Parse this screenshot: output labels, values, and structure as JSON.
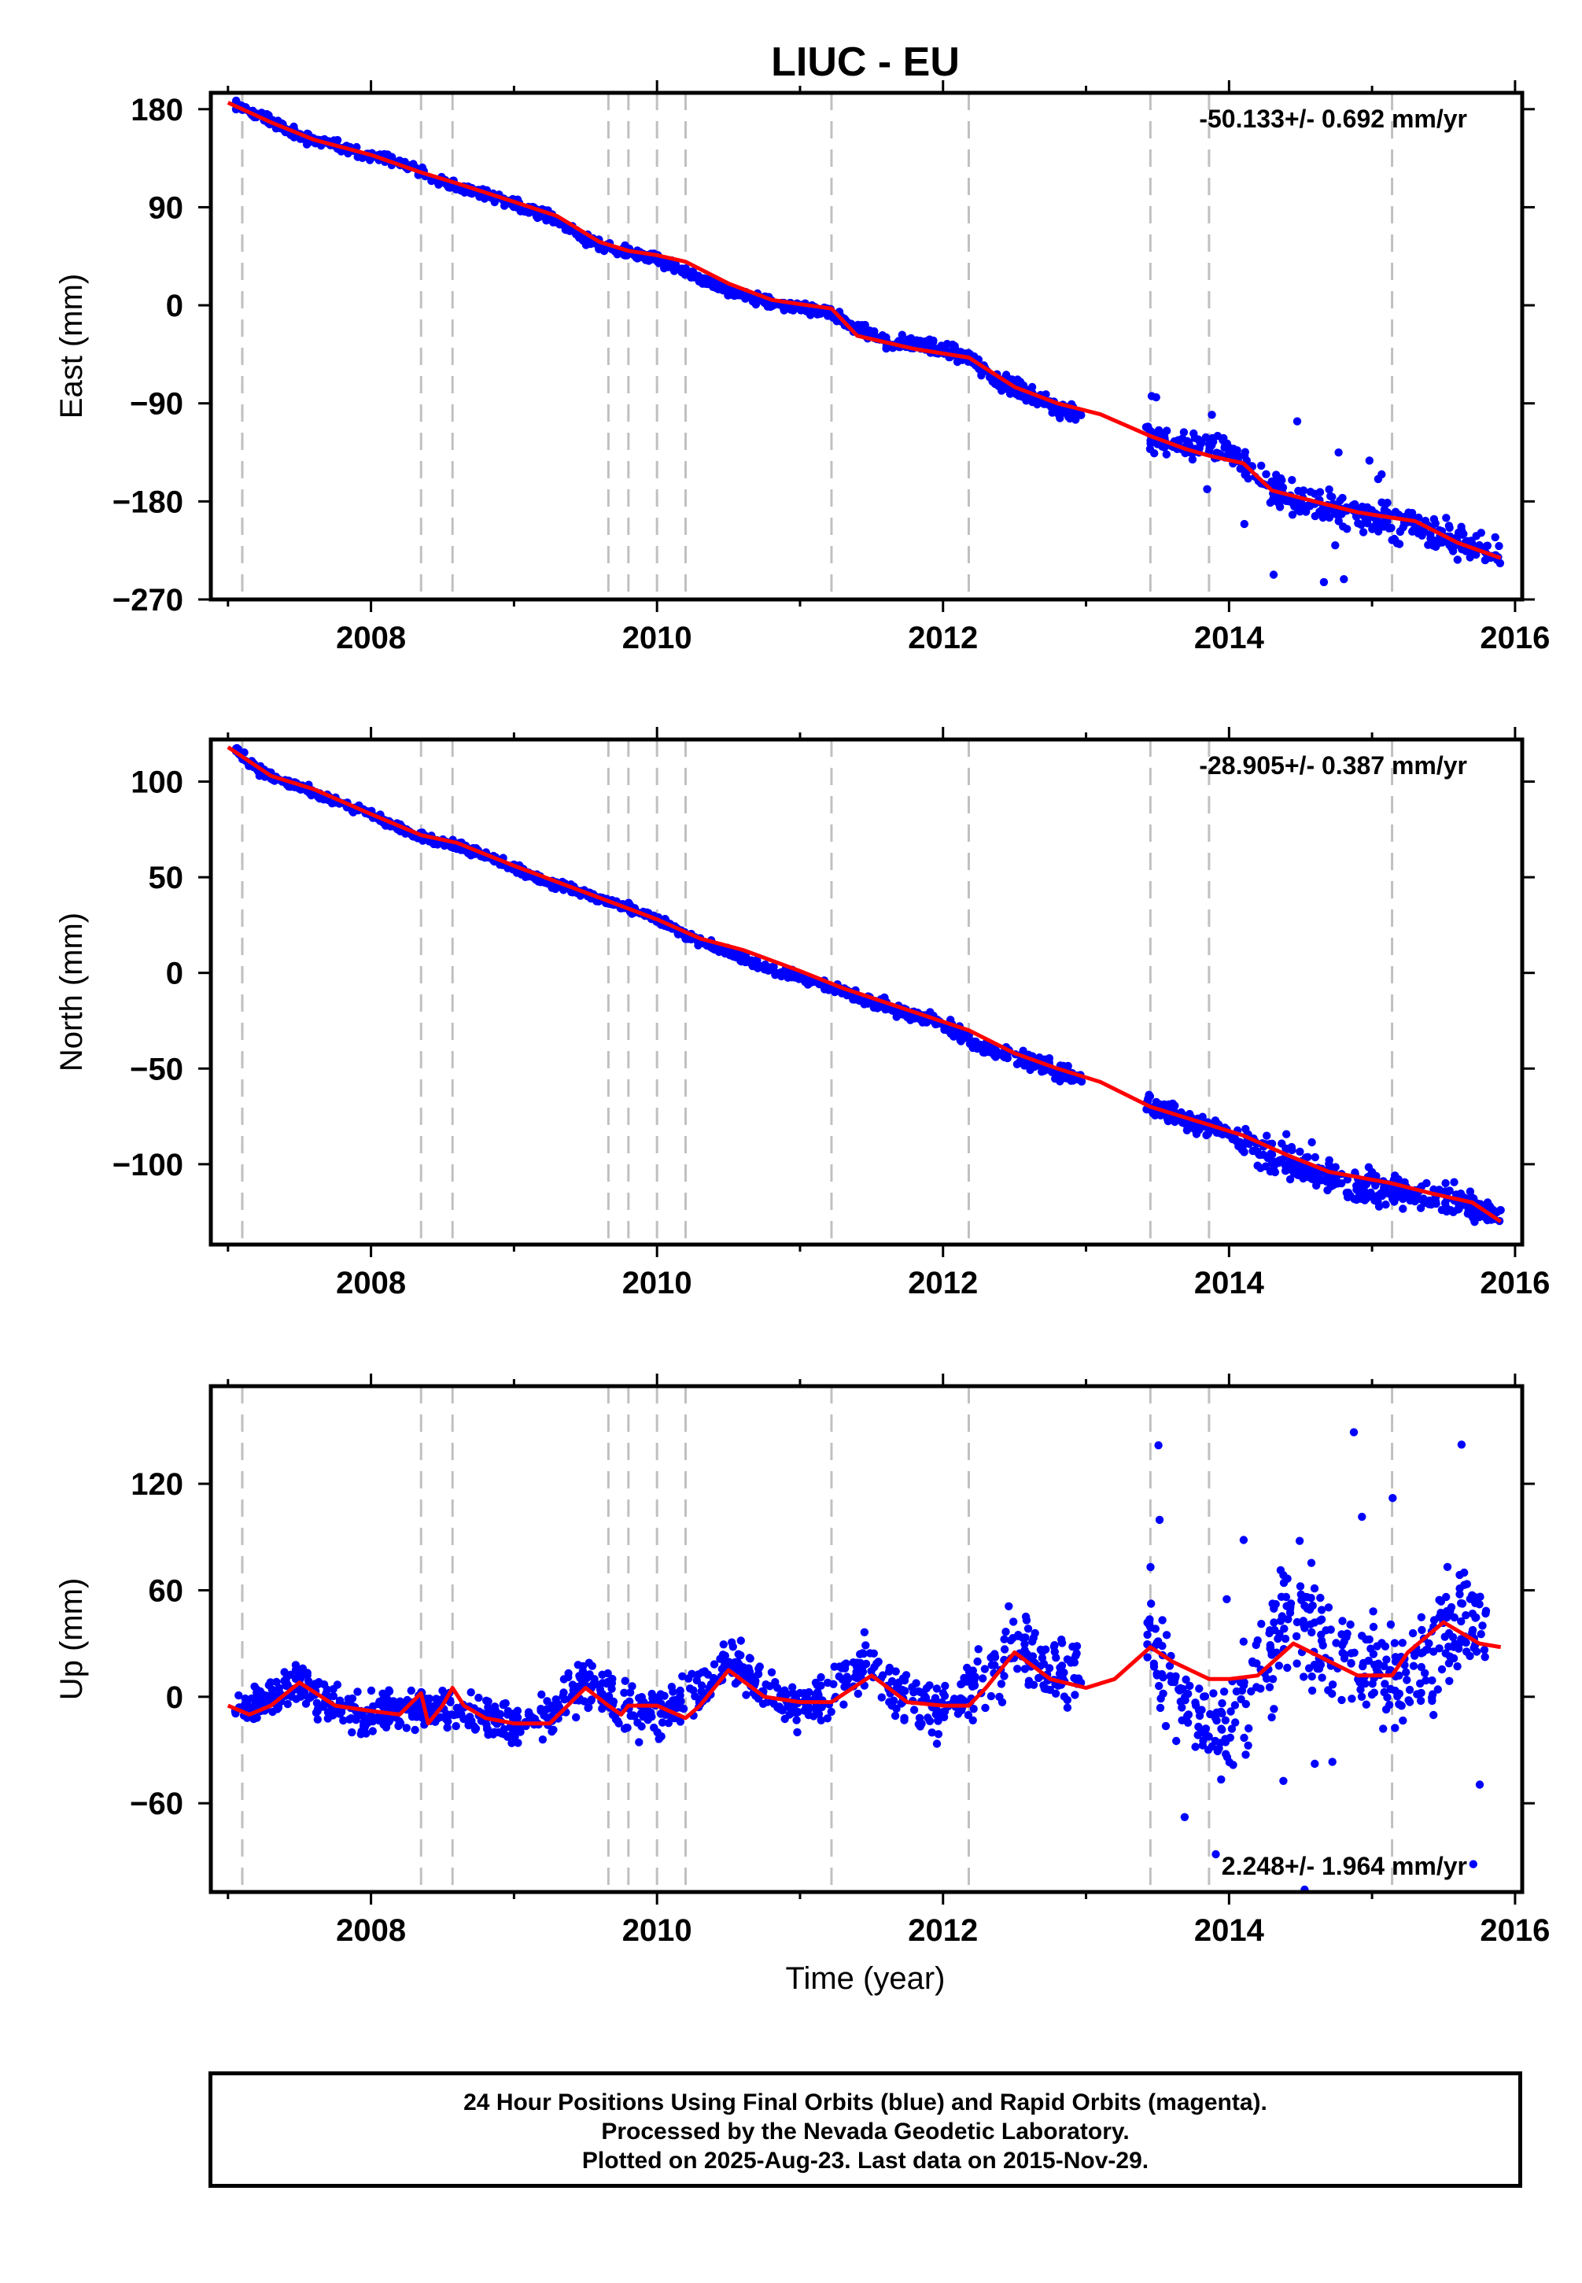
{
  "title": "LIUC - EU",
  "xlabel": "Time (year)",
  "x_ticks": [
    "2008",
    "2010",
    "2012",
    "2014",
    "2016"
  ],
  "footer": {
    "line1": "24 Hour Positions Using Final Orbits (blue) and Rapid Orbits (magenta).",
    "line2": "Processed by the Nevada Geodetic Laboratory.",
    "line3": "Plotted on 2025-Aug-23. Last data on 2015-Nov-29."
  },
  "colors": {
    "data": "#0000ff",
    "model": "#ff0000",
    "events": "#c0c0c0",
    "axes": "#000000"
  },
  "chart_data": [
    {
      "type": "scatter",
      "ylabel": "East (mm)",
      "rate_label": "-50.133+/- 0.692 mm/yr",
      "xlim": [
        2006.88,
        2016.05
      ],
      "ylim": [
        -270,
        195
      ],
      "y_ticks": [
        180,
        90,
        0,
        -90,
        -180,
        -270
      ],
      "y_tick_labels": [
        "180",
        "90",
        "0",
        "−90",
        "−180",
        "−270"
      ],
      "event_lines": [
        2007.1,
        2008.35,
        2008.57,
        2009.66,
        2009.8,
        2010.0,
        2010.2,
        2011.22,
        2012.18,
        2013.45,
        2013.86,
        2015.14
      ],
      "series": [
        {
          "kind": "scatter",
          "x": [
            2007.05,
            2007.25,
            2007.5,
            2007.75,
            2008.0,
            2008.25,
            2008.5,
            2008.75,
            2009.0,
            2009.25,
            2009.5,
            2009.75,
            2010.0,
            2010.25,
            2010.5,
            2010.75,
            2011.0,
            2011.2,
            2011.4,
            2011.6,
            2011.8,
            2012.0,
            2012.2,
            2012.4,
            2012.6,
            2012.8,
            2012.95,
            2013.5,
            2013.75,
            2014.0,
            2014.3,
            2014.5,
            2014.75,
            2015.0,
            2015.25,
            2015.5,
            2015.75,
            2015.9
          ],
          "y": [
            185,
            172,
            155,
            147,
            138,
            128,
            113,
            104,
            93,
            82,
            60,
            50,
            43,
            28,
            13,
            4,
            -2,
            -6,
            -22,
            -33,
            -36,
            -40,
            -50,
            -70,
            -82,
            -95,
            -100,
            -125,
            -130,
            -132,
            -170,
            -180,
            -188,
            -195,
            -200,
            -212,
            -225,
            -228
          ],
          "spread": [
            3,
            4,
            4,
            4,
            4,
            4,
            4,
            4,
            4,
            4,
            4,
            4,
            4,
            4,
            4,
            4,
            4,
            4,
            5,
            5,
            5,
            5,
            6,
            6,
            7,
            7,
            6,
            10,
            10,
            8,
            14,
            14,
            12,
            13,
            14,
            14,
            12,
            10
          ]
        },
        {
          "kind": "line",
          "x": [
            2007.0,
            2007.3,
            2007.6,
            2008.0,
            2008.35,
            2008.6,
            2009.0,
            2009.3,
            2009.6,
            2009.8,
            2010.0,
            2010.2,
            2010.5,
            2010.8,
            2011.0,
            2011.22,
            2011.4,
            2011.8,
            2012.18,
            2012.5,
            2012.8,
            2013.1,
            2013.45,
            2013.7,
            2013.86,
            2014.1,
            2014.3,
            2014.6,
            2014.9,
            2015.14,
            2015.3,
            2015.6,
            2015.9
          ],
          "y": [
            186,
            168,
            152,
            138,
            122,
            112,
            95,
            82,
            58,
            50,
            46,
            40,
            20,
            5,
            1,
            -3,
            -28,
            -40,
            -48,
            -75,
            -90,
            -100,
            -120,
            -132,
            -138,
            -145,
            -170,
            -180,
            -190,
            -195,
            -198,
            -218,
            -232
          ]
        }
      ]
    },
    {
      "type": "scatter",
      "ylabel": "North (mm)",
      "rate_label": "-28.905+/- 0.387 mm/yr",
      "xlim": [
        2006.88,
        2016.05
      ],
      "ylim": [
        -142,
        122
      ],
      "y_ticks": [
        100,
        50,
        0,
        -50,
        -100
      ],
      "y_tick_labels": [
        "100",
        "50",
        "0",
        "−50",
        "−100"
      ],
      "event_lines": [
        2007.1,
        2008.35,
        2008.57,
        2009.66,
        2009.8,
        2010.0,
        2010.2,
        2011.22,
        2012.18,
        2013.45,
        2013.86,
        2015.14
      ],
      "series": [
        {
          "kind": "scatter",
          "x": [
            2007.05,
            2007.25,
            2007.5,
            2007.75,
            2008.0,
            2008.25,
            2008.5,
            2008.75,
            2009.0,
            2009.25,
            2009.5,
            2009.75,
            2010.0,
            2010.25,
            2010.5,
            2010.75,
            2011.0,
            2011.25,
            2011.5,
            2011.75,
            2012.0,
            2012.25,
            2012.5,
            2012.75,
            2012.95,
            2013.5,
            2013.75,
            2014.0,
            2014.25,
            2014.5,
            2014.75,
            2015.0,
            2015.25,
            2015.5,
            2015.75,
            2015.9
          ],
          "y": [
            117,
            104,
            97,
            90,
            83,
            74,
            68,
            63,
            55,
            47,
            41,
            35,
            28,
            18,
            11,
            3,
            -2,
            -8,
            -15,
            -20,
            -27,
            -38,
            -44,
            -50,
            -55,
            -70,
            -78,
            -83,
            -95,
            -100,
            -107,
            -113,
            -115,
            -118,
            -123,
            -127
          ],
          "spread": [
            2,
            2,
            2,
            2,
            2,
            2,
            2,
            2,
            2,
            2,
            2,
            2,
            2,
            2,
            2,
            2,
            2,
            2,
            3,
            3,
            3,
            3,
            4,
            4,
            3,
            5,
            5,
            5,
            9,
            9,
            7,
            8,
            8,
            8,
            6,
            5
          ]
        },
        {
          "kind": "line",
          "x": [
            2007.0,
            2007.3,
            2007.6,
            2008.0,
            2008.35,
            2008.6,
            2009.0,
            2009.5,
            2010.0,
            2010.3,
            2010.6,
            2011.0,
            2011.3,
            2011.7,
            2012.18,
            2012.5,
            2012.8,
            2013.1,
            2013.45,
            2013.8,
            2014.1,
            2014.4,
            2014.7,
            2015.14,
            2015.4,
            2015.7,
            2015.9
          ],
          "y": [
            118,
            103,
            96,
            83,
            72,
            68,
            56,
            42,
            28,
            18,
            12,
            1,
            -8,
            -18,
            -30,
            -42,
            -50,
            -57,
            -70,
            -78,
            -85,
            -95,
            -104,
            -110,
            -115,
            -120,
            -130
          ]
        }
      ]
    },
    {
      "type": "scatter",
      "ylabel": "Up (mm)",
      "rate_label": "2.248+/- 1.964 mm/yr",
      "xlim": [
        2006.88,
        2016.05
      ],
      "ylim": [
        -110,
        175
      ],
      "y_ticks": [
        120,
        60,
        0,
        -60
      ],
      "y_tick_labels": [
        "120",
        "60",
        "0",
        "−60"
      ],
      "event_lines": [
        2007.1,
        2008.35,
        2008.57,
        2009.66,
        2009.8,
        2010.0,
        2010.2,
        2011.22,
        2012.18,
        2013.45,
        2013.86,
        2015.14
      ],
      "series": [
        {
          "kind": "scatter",
          "x": [
            2007.05,
            2007.25,
            2007.5,
            2007.75,
            2008.0,
            2008.25,
            2008.5,
            2008.75,
            2009.0,
            2009.25,
            2009.5,
            2009.75,
            2010.0,
            2010.25,
            2010.5,
            2010.75,
            2011.0,
            2011.25,
            2011.5,
            2011.75,
            2012.0,
            2012.25,
            2012.5,
            2012.8,
            2013.45,
            2013.6,
            2013.8,
            2014.0,
            2014.2,
            2014.4,
            2014.6,
            2014.8,
            2015.0,
            2015.2,
            2015.4,
            2015.6,
            2015.8
          ],
          "y": [
            -5,
            -3,
            8,
            -5,
            -10,
            -8,
            -5,
            -12,
            -15,
            -10,
            10,
            -5,
            -10,
            0,
            20,
            5,
            -5,
            5,
            20,
            0,
            -10,
            10,
            30,
            12,
            35,
            5,
            -10,
            -20,
            10,
            45,
            35,
            25,
            15,
            5,
            20,
            50,
            35
          ],
          "spread": [
            8,
            8,
            10,
            10,
            10,
            10,
            10,
            10,
            10,
            10,
            12,
            12,
            10,
            12,
            14,
            12,
            10,
            14,
            16,
            14,
            14,
            16,
            18,
            14,
            25,
            25,
            20,
            20,
            28,
            30,
            28,
            25,
            22,
            22,
            28,
            30,
            22
          ]
        },
        {
          "kind": "line",
          "x": [
            2007.0,
            2007.15,
            2007.3,
            2007.5,
            2007.75,
            2008.0,
            2008.2,
            2008.35,
            2008.4,
            2008.5,
            2008.57,
            2008.65,
            2008.8,
            2009.0,
            2009.25,
            2009.5,
            2009.66,
            2009.75,
            2009.8,
            2010.0,
            2010.2,
            2010.3,
            2010.5,
            2010.75,
            2011.0,
            2011.22,
            2011.5,
            2011.75,
            2012.0,
            2012.18,
            2012.3,
            2012.5,
            2012.75,
            2013.0,
            2013.2,
            2013.45,
            2013.6,
            2013.86,
            2014.0,
            2014.2,
            2014.45,
            2014.7,
            2014.9,
            2015.14,
            2015.25,
            2015.5,
            2015.75,
            2015.9
          ],
          "y": [
            -5,
            -10,
            -5,
            8,
            -5,
            -8,
            -10,
            2,
            -15,
            -5,
            5,
            -5,
            -12,
            -15,
            -15,
            5,
            -5,
            -10,
            -5,
            -5,
            -12,
            -5,
            15,
            0,
            -3,
            -3,
            12,
            -3,
            -5,
            -5,
            5,
            25,
            10,
            5,
            10,
            28,
            20,
            10,
            10,
            12,
            30,
            20,
            12,
            12,
            25,
            42,
            30,
            28
          ]
        }
      ]
    }
  ]
}
